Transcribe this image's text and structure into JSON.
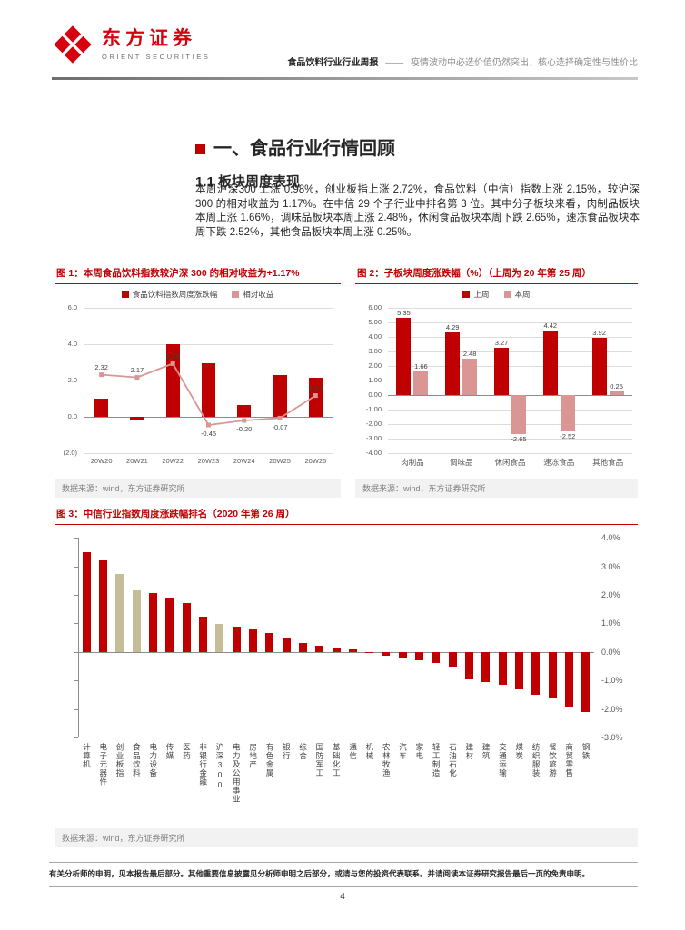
{
  "header": {
    "logo": {
      "cn": "东方证券",
      "en": "ORIENT SECURITIES"
    },
    "report_type": "食品饮料行业行业周报",
    "dash": "——",
    "subtitle": "疫情波动中必选价值仍然突出，核心选择确定性与性价比"
  },
  "section": {
    "title": "一、食品行业行情回顾"
  },
  "subsection": {
    "title": "1.1 板块周度表现"
  },
  "paragraph": "本周沪深300 上涨 0.98%，创业板指上涨 2.72%，食品饮料（中信）指数上涨 2.15%，较沪深 300 的相对收益为 1.17%。在中信 29 个子行业中排名第 3 位。其中分子板块来看，肉制品板块本周上涨 1.66%，调味品板块本周上涨 2.48%，休闲食品板块本周下跌 2.65%，速冻食品板块本周下跌 2.52%，其他食品板块本周上涨 0.25%。",
  "source_note": "数据来源：wind，东方证券研究所",
  "footer": {
    "disclaimer": "有关分析师的申明，见本报告最后部分。其他重要信息披露见分析师申明之后部分，或请与您的投资代表联系。并请阅读本证券研究报告最后一页的免责申明。",
    "page_number": "4"
  },
  "colors": {
    "brand_red": "#d7000f",
    "dark_red": "#c00000",
    "pink": "#d99694",
    "highlight_beige": "#c4bd97",
    "gray_text": "#808080"
  },
  "chart_data": [
    {
      "id": "fig1",
      "type": "bar+line",
      "title": "图 1：本周食品饮料指数较沪深 300 的相对收益为+1.17%",
      "categories": [
        "20W20",
        "20W21",
        "20W22",
        "20W23",
        "20W24",
        "20W25",
        "20W26"
      ],
      "series": [
        {
          "name": "食品饮料指数周度涨跌幅",
          "type": "bar",
          "color": "#c00000",
          "values": [
            1.0,
            -0.15,
            4.02,
            2.98,
            0.65,
            2.3,
            2.15
          ]
        },
        {
          "name": "相对收益",
          "type": "line",
          "color": "#d99694",
          "values": [
            2.32,
            2.17,
            2.93,
            -0.45,
            -0.2,
            -0.07,
            1.17
          ],
          "labels": [
            "2.32",
            "2.17",
            "2.93",
            "-0.45",
            "-0.20",
            "-0.07",
            "1.17"
          ]
        }
      ],
      "ylim": [
        -2,
        6
      ],
      "ytick_vals": [
        6,
        4,
        2,
        0,
        -2
      ],
      "ytick_labels": [
        "6.0",
        "4.0",
        "2.0",
        "0.0",
        "(2.0)"
      ],
      "legend_position": "top",
      "grid": true
    },
    {
      "id": "fig2",
      "type": "bar",
      "title": "图 2：子板块周度涨跌幅（%）（上周为 20 年第 25 周）",
      "categories": [
        "肉制品",
        "调味品",
        "休闲食品",
        "速冻食品",
        "其他食品"
      ],
      "series": [
        {
          "name": "上周",
          "type": "bar",
          "color": "#c00000",
          "values": [
            5.35,
            4.29,
            3.27,
            4.42,
            3.92
          ],
          "labels": [
            "5.35",
            "4.29",
            "3.27",
            "4.42",
            "3.92"
          ]
        },
        {
          "name": "本周",
          "type": "bar",
          "color": "#d99694",
          "values": [
            1.66,
            2.48,
            -2.65,
            -2.52,
            0.25
          ],
          "labels": [
            "1.66",
            "2.48",
            "-2.65",
            "-2.52",
            "0.25"
          ]
        }
      ],
      "ylim": [
        -4,
        6
      ],
      "ytick_vals": [
        6,
        5,
        4,
        3,
        2,
        1,
        0,
        -1,
        -2,
        -3,
        -4
      ],
      "ytick_labels": [
        "6.00",
        "5.00",
        "4.00",
        "3.00",
        "2.00",
        "1.00",
        "0.00",
        "-1.00",
        "-2.00",
        "-3.00",
        "-4.00"
      ],
      "legend_position": "top",
      "grid": true
    },
    {
      "id": "fig3",
      "type": "bar",
      "title": "图 3：中信行业指数周度涨跌幅排名（2020 年第 26 周）",
      "categories": [
        "计算机",
        "电子元器件",
        "创业板指",
        "食品饮料",
        "电力设备",
        "传媒",
        "医药",
        "非银行金融",
        "沪深300",
        "电力及公用事业",
        "房地产",
        "有色金属",
        "银行",
        "综合",
        "国防军工",
        "基础化工",
        "通信",
        "机械",
        "农林牧渔",
        "汽车",
        "家电",
        "轻工制造",
        "石油石化",
        "建材",
        "建筑",
        "交通运输",
        "煤炭",
        "纺织服装",
        "餐饮旅游",
        "商贸零售",
        "钢铁"
      ],
      "series": [
        {
          "type": "bar",
          "color": "#c00000",
          "values": [
            3.5,
            3.2,
            2.72,
            2.15,
            2.05,
            1.9,
            1.7,
            1.25,
            0.98,
            0.9,
            0.8,
            0.65,
            0.5,
            0.32,
            0.22,
            0.15,
            0.08,
            -0.05,
            -0.12,
            -0.2,
            -0.28,
            -0.38,
            -0.5,
            -0.95,
            -1.05,
            -1.15,
            -1.3,
            -1.5,
            -1.62,
            -1.95,
            -2.1
          ]
        }
      ],
      "highlight": {
        "names": [
          "创业板指",
          "食品饮料",
          "沪深300"
        ],
        "color": "#c4bd97"
      },
      "ylim": [
        -3,
        4
      ],
      "ytick_vals": [
        4,
        3,
        2,
        1,
        0,
        -1,
        -2,
        -3
      ],
      "ytick_labels": [
        "4.0%",
        "3.0%",
        "2.0%",
        "1.0%",
        "0.0%",
        "-1.0%",
        "-2.0%",
        "-3.0%"
      ],
      "yaxis_side": "right",
      "xlabels_vertical": true,
      "grid": false
    }
  ]
}
